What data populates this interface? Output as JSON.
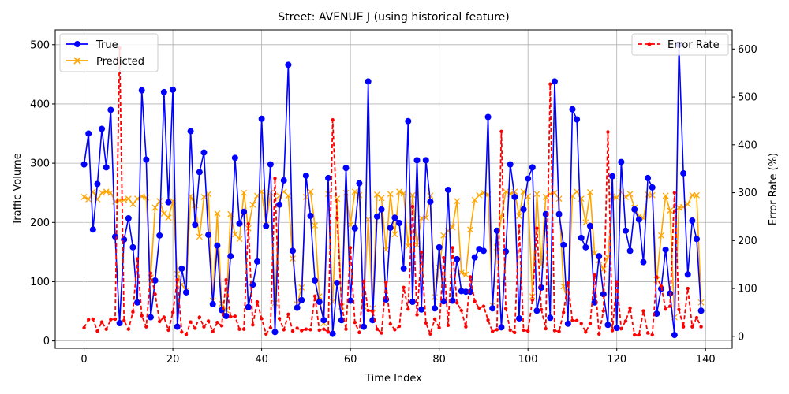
{
  "chart_data": {
    "type": "line",
    "title": "Street: AVENUE J (using historical feature)",
    "xlabel": "Time Index",
    "ylabel": "Traffic Volume",
    "ylabel_right": "Error Rate (%)",
    "xlim": [
      -6.5,
      146
    ],
    "ylim": [
      -12.5,
      525
    ],
    "ylim_right": [
      -25,
      640
    ],
    "xticks": [
      0,
      20,
      40,
      60,
      80,
      100,
      120,
      140
    ],
    "yticks": [
      0,
      100,
      200,
      300,
      400,
      500
    ],
    "yticks_right": [
      0,
      100,
      200,
      300,
      400,
      500,
      600
    ],
    "grid": true,
    "legend_left": "upper-left",
    "legend_right": "upper-right",
    "colors": {
      "true": "#0000ff",
      "predicted": "#ffa500",
      "error": "#ff0000"
    },
    "series": [
      {
        "name": "True",
        "axis": "left",
        "values": [
          298,
          350,
          188,
          265,
          358,
          293,
          390,
          176,
          30,
          171,
          207,
          158,
          65,
          423,
          306,
          40,
          102,
          178,
          420,
          234,
          424,
          24,
          122,
          82,
          354,
          196,
          285,
          318,
          179,
          62,
          161,
          52,
          42,
          143,
          309,
          198,
          218,
          57,
          95,
          134,
          375,
          194,
          298,
          15,
          230,
          271,
          466,
          152,
          56,
          69,
          279,
          211,
          102,
          66,
          35,
          275,
          12,
          98,
          35,
          292,
          68,
          190,
          266,
          24,
          438,
          35,
          210,
          222,
          70,
          191,
          208,
          199,
          122,
          371,
          66,
          305,
          53,
          305,
          235,
          55,
          158,
          67,
          255,
          68,
          138,
          84,
          83,
          83,
          141,
          155,
          152,
          378,
          55,
          186,
          23,
          151,
          298,
          243,
          38,
          222,
          274,
          293,
          51,
          90,
          214,
          39,
          438,
          214,
          162,
          29,
          391,
          374,
          174,
          158,
          194,
          65,
          143,
          79,
          27,
          278,
          22,
          302,
          186,
          152,
          222,
          205,
          133,
          275,
          259,
          46,
          88,
          154,
          80,
          10,
          500,
          283,
          112,
          203,
          172,
          51
        ]
      },
      {
        "name": "Predicted",
        "axis": "left",
        "values": [
          243,
          239,
          252,
          239,
          250,
          252,
          250,
          235,
          237,
          238,
          240,
          231,
          240,
          244,
          242,
          107,
          225,
          236,
          215,
          208,
          236,
          113,
          95,
          85,
          244,
          229,
          176,
          243,
          248,
          68,
          215,
          63,
          52,
          214,
          180,
          172,
          250,
          190,
          230,
          245,
          252,
          196,
          250,
          64,
          245,
          252,
          245,
          139,
          62,
          90,
          243,
          252,
          195,
          75,
          30,
          248,
          66,
          240,
          58,
          250,
          196,
          252,
          246,
          58,
          205,
          55,
          247,
          241,
          154,
          248,
          180,
          252,
          249,
          160,
          246,
          162,
          207,
          208,
          245,
          74,
          124,
          178,
          186,
          192,
          236,
          115,
          112,
          188,
          238,
          246,
          250,
          247,
          60,
          158,
          210,
          252,
          248,
          252,
          211,
          252,
          244,
          75,
          248,
          128,
          243,
          248,
          250,
          240,
          92,
          65,
          245,
          252,
          240,
          200,
          251,
          148,
          136,
          121,
          141,
          244,
          242,
          251,
          243,
          248,
          225,
          210,
          207,
          247,
          246,
          103,
          178,
          245,
          220,
          40,
          225,
          226,
          231,
          246,
          246,
          65
        ]
      },
      {
        "name": "Error Rate",
        "axis": "right",
        "values": [
          18,
          35,
          36,
          11,
          30,
          15,
          35,
          36,
          602,
          33,
          15,
          51,
          162,
          43,
          20,
          132,
          88,
          31,
          40,
          13,
          50,
          118,
          9,
          4,
          30,
          17,
          40,
          20,
          32,
          10,
          29,
          22,
          118,
          41,
          42,
          15,
          15,
          235,
          24,
          72,
          37,
          5,
          18,
          330,
          37,
          14,
          46,
          11,
          17,
          12,
          15,
          14,
          84,
          13,
          15,
          9,
          452,
          247,
          67,
          15,
          185,
          29,
          8,
          115,
          54,
          52,
          15,
          7,
          113,
          26,
          14,
          21,
          102,
          57,
          271,
          45,
          176,
          28,
          5,
          36,
          18,
          164,
          23,
          185,
          70,
          54,
          20,
          124,
          73,
          59,
          63,
          34,
          10,
          14,
          428,
          58,
          13,
          8,
          231,
          13,
          11,
          76,
          226,
          56,
          16,
          527,
          12,
          10,
          50,
          112,
          33,
          33,
          27,
          9,
          27,
          128,
          5,
          53,
          427,
          12,
          114,
          16,
          32,
          59,
          3,
          3,
          53,
          7,
          3,
          124,
          105,
          57,
          63,
          300,
          56,
          20,
          100,
          20,
          39,
          20
        ]
      }
    ]
  }
}
